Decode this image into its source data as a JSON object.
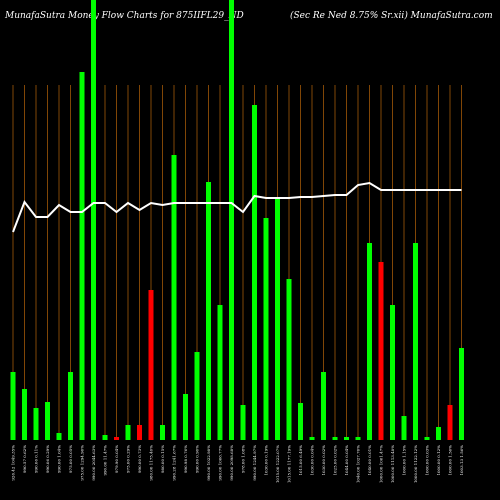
{
  "chart_data": {
    "type": "bar",
    "title": "MunafaSutra  Money Flow  Charts for 875IIFL29_ND",
    "subtitle": "(Sec Re   Ned 8.75% Sr.xii) MunafaSutra.com",
    "categories": [
      "926.42 1049.35%",
      "990.57 0.62%",
      "990.06 0.11%",
      "990.06 0.29%",
      "990.00 1.04%",
      "975.00 0.05%",
      "975.00 1294.96%",
      "990.00 2044.63%",
      "990.00 11.47%",
      "979.90 0.04%",
      "975.00 0.29%",
      "990.00 0.73%",
      "980.00 1175.40%",
      "980.00 0.15%",
      "990.28 1241.67%",
      "990.98 0.76%",
      "990.00 0.90%",
      "990.00 1022.98%",
      "990.00 1066.77%",
      "990.00 2098.68%",
      "978.00 1.08%",
      "990.00 1244.97%",
      "1030.00 0.19%",
      "1015.00 1222.07%",
      "1015.00 1177.19%",
      "1015.00 6.49%",
      "1030.00 0.04%",
      "1030.00 0.02%",
      "1025.00 0.02%",
      "1044.00 0.04%",
      "1040.00 1027.76%",
      "1040.00 0.01%",
      "1000.00 1061.47%",
      "1000.00 1113.48%",
      "1000.00 1.15%",
      "1000.00 1122.12%",
      "1000.00 0.03%",
      "1000.00 0.12%",
      "1000.00 1.56%",
      "1003.13 1.56%"
    ],
    "series": [
      {
        "name": "money flow",
        "values": [
          68,
          51,
          32,
          38,
          7,
          68,
          368,
          460,
          5,
          3,
          15,
          15,
          150,
          15,
          285,
          46,
          88,
          258,
          135,
          460,
          35,
          335,
          222,
          243,
          161,
          37,
          3,
          68,
          3,
          3,
          3,
          197,
          178,
          135,
          24,
          197,
          3,
          13,
          35,
          92
        ],
        "colors": [
          "#00ff00",
          "#00ff00",
          "#00ff00",
          "#00ff00",
          "#00ff00",
          "#00ff00",
          "#00ff00",
          "#00ff00",
          "#00ff00",
          "#ff0000",
          "#00ff00",
          "#ff0000",
          "#ff0000",
          "#00ff00",
          "#00ff00",
          "#00ff00",
          "#00ff00",
          "#00ff00",
          "#00ff00",
          "#00ff00",
          "#00ff00",
          "#00ff00",
          "#00ff00",
          "#00ff00",
          "#00ff00",
          "#00ff00",
          "#00ff00",
          "#00ff00",
          "#00ff00",
          "#00ff00",
          "#00ff00",
          "#00ff00",
          "#ff0000",
          "#00ff00",
          "#00ff00",
          "#00ff00",
          "#00ff00",
          "#00ff00",
          "#ff0000",
          "#00ff00"
        ]
      },
      {
        "name": "price",
        "color": "#ffffff",
        "values": [
          208,
          238,
          223,
          223,
          235,
          228,
          228,
          237,
          237,
          228,
          237,
          230,
          237,
          235,
          237,
          237,
          237,
          237,
          237,
          237,
          228,
          244,
          242,
          242,
          242,
          243,
          243,
          244,
          245,
          245,
          255,
          257,
          250,
          250,
          250,
          250,
          250,
          250,
          250,
          250
        ]
      }
    ],
    "ylim": [
      0,
      440
    ],
    "grid_color": "#b8650a"
  }
}
